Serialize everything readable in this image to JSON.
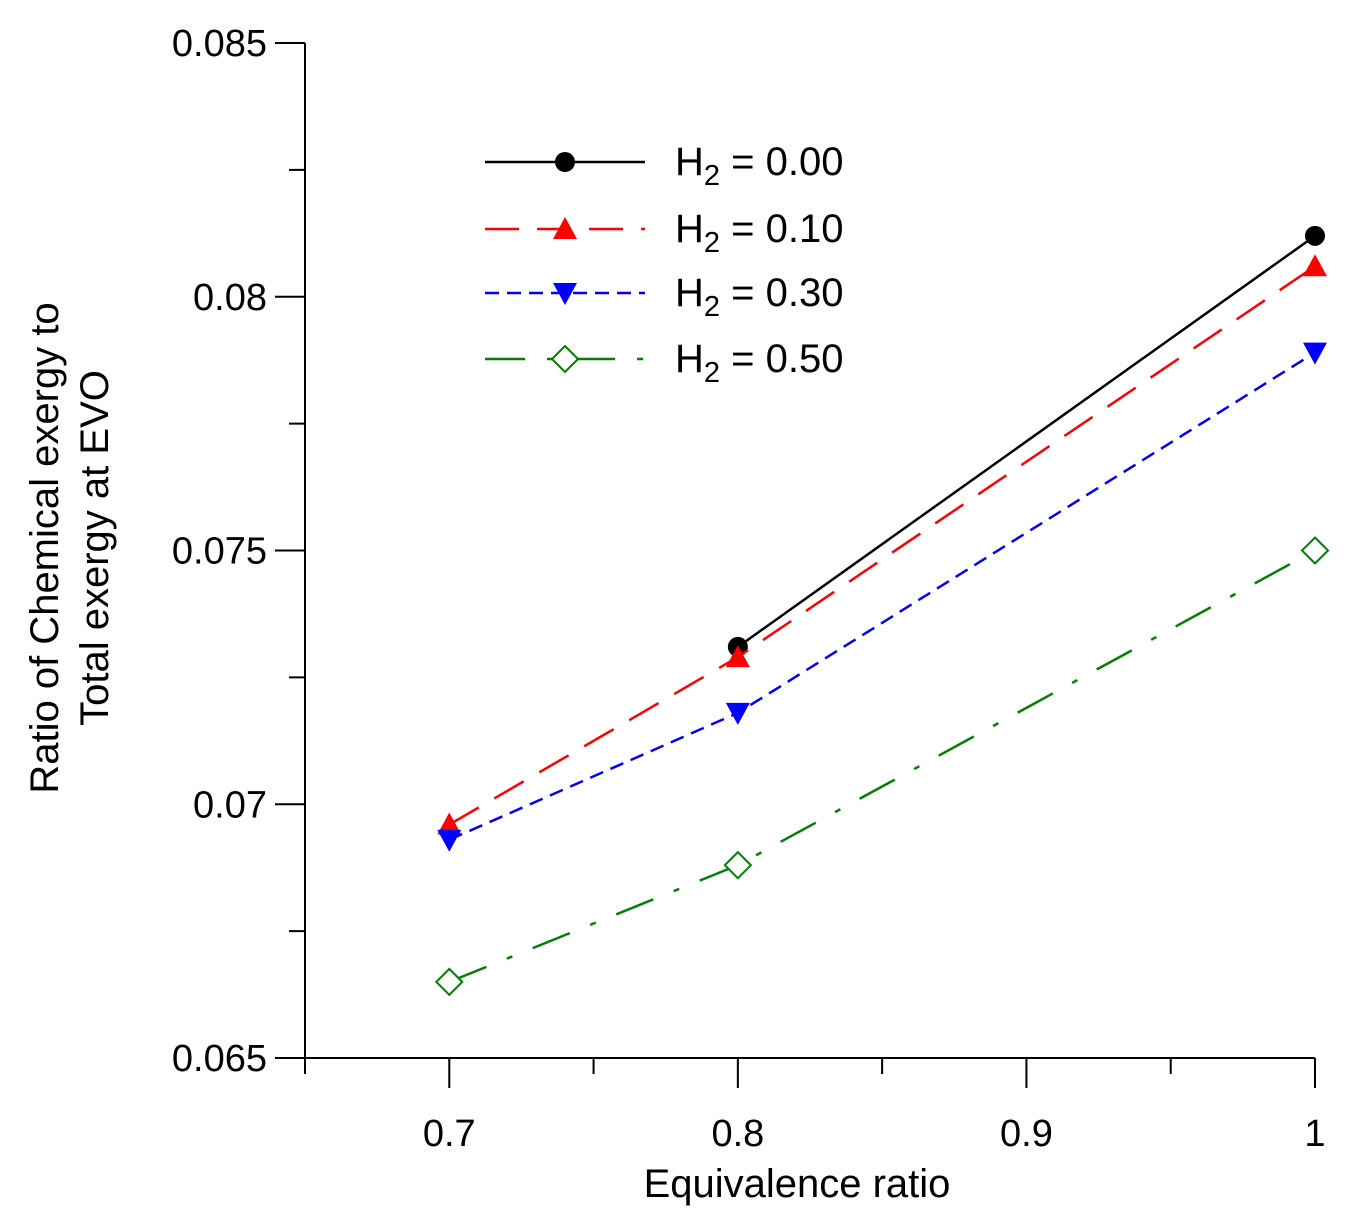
{
  "chart_data": {
    "type": "line",
    "title": "",
    "xlabel": "Equivalence ratio",
    "ylabel_lines": [
      "Ratio of Chemical exergy to",
      "Total exergy at EVO"
    ],
    "xlim": [
      0.65,
      1.0
    ],
    "ylim": [
      0.065,
      0.085
    ],
    "x_ticks": [
      {
        "value": 0.7,
        "label": "0.7"
      },
      {
        "value": 0.8,
        "label": "0.8"
      },
      {
        "value": 0.9,
        "label": "0.9"
      },
      {
        "value": 1.0,
        "label": "1"
      }
    ],
    "x_minor_ticks": [
      0.65,
      0.75,
      0.85,
      0.95
    ],
    "y_ticks": [
      {
        "value": 0.065,
        "label": "0.065"
      },
      {
        "value": 0.07,
        "label": "0.07"
      },
      {
        "value": 0.075,
        "label": "0.075"
      },
      {
        "value": 0.08,
        "label": "0.08"
      },
      {
        "value": 0.085,
        "label": "0.085"
      }
    ],
    "y_minor_ticks": [
      0.0675,
      0.0725,
      0.0775,
      0.0825
    ],
    "grid": false,
    "legend_position": "upper-left",
    "series": [
      {
        "name": "H2 = 0.00",
        "legend_main": "H",
        "legend_sub": "2",
        "legend_value": " = 0.00",
        "color": "#000000",
        "marker": "circle",
        "dash": "",
        "x": [
          0.8,
          1.0
        ],
        "y": [
          0.0731,
          0.0812
        ]
      },
      {
        "name": "H2 = 0.10",
        "legend_main": "H",
        "legend_sub": "2",
        "legend_value": " = 0.10",
        "color": "#ff0000",
        "marker": "triangle-up",
        "dash": "34,18",
        "x": [
          0.7,
          0.8,
          1.0
        ],
        "y": [
          0.0696,
          0.0729,
          0.0806
        ]
      },
      {
        "name": "H2 = 0.30",
        "legend_main": "H",
        "legend_sub": "2",
        "legend_value": " = 0.30",
        "color": "#0000ff",
        "marker": "triangle-down",
        "dash": "14,8",
        "x": [
          0.7,
          0.8,
          1.0
        ],
        "y": [
          0.0693,
          0.0718,
          0.0789
        ]
      },
      {
        "name": "H2 = 0.50",
        "legend_main": "H",
        "legend_sub": "2",
        "legend_value": " = 0.50",
        "color": "#008000",
        "marker": "diamond-open",
        "dash": "40,22,6,22",
        "x": [
          0.7,
          0.8,
          1.0
        ],
        "y": [
          0.0665,
          0.0688,
          0.075
        ]
      }
    ]
  }
}
